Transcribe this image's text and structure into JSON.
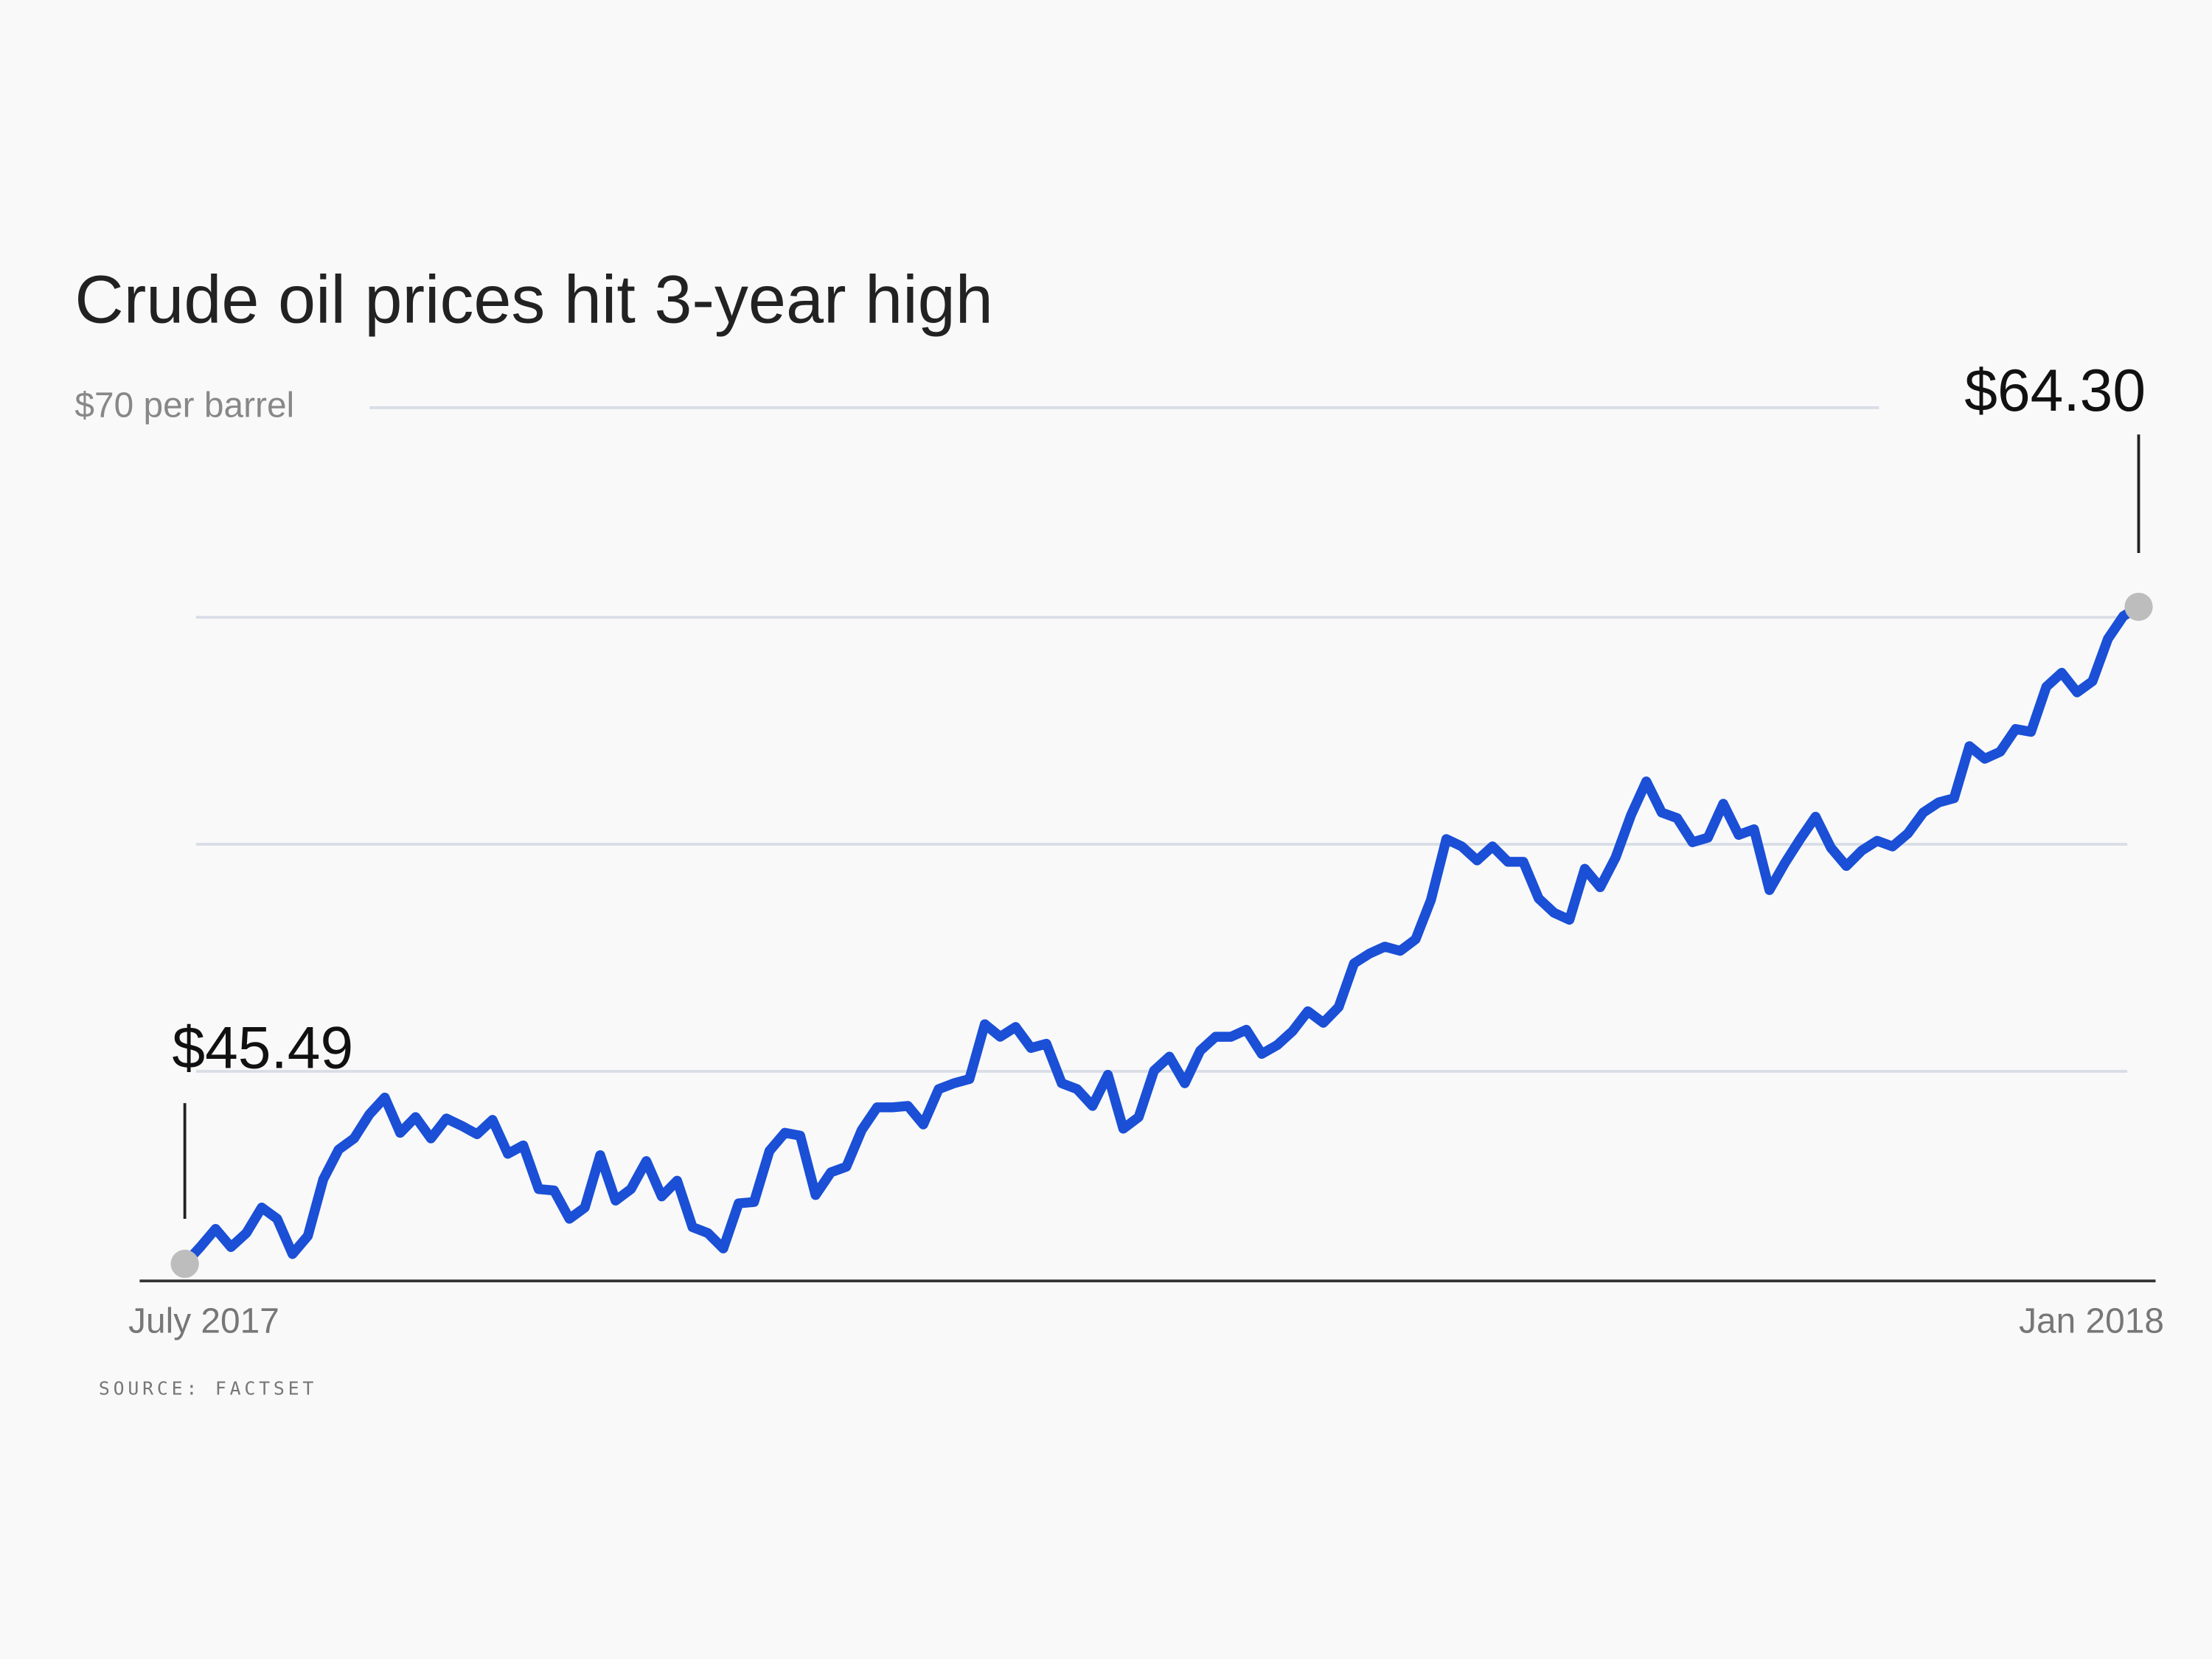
{
  "chart_data": {
    "type": "line",
    "title": "Crude oil prices hit 3-year high",
    "source": "SOURCE: FACTSET",
    "color": "#1a4fd6",
    "ylim": [
      45,
      70
    ],
    "yticks": [
      {
        "value": 70,
        "label": "$70 per barrel"
      }
    ],
    "grid_lines": [
      64,
      57.5,
      51
    ],
    "categories": [
      "July 2017",
      null,
      null,
      null,
      null,
      null,
      null,
      null,
      null,
      null,
      null,
      null,
      null,
      null,
      null,
      null,
      null,
      null,
      null,
      null,
      null,
      null,
      null,
      null,
      null,
      null,
      null,
      null,
      null,
      null,
      null,
      null,
      null,
      null,
      null,
      null,
      null,
      null,
      null,
      null,
      null,
      null,
      null,
      null,
      null,
      null,
      null,
      null,
      null,
      null,
      null,
      null,
      null,
      null,
      null,
      null,
      null,
      null,
      null,
      null,
      null,
      null,
      null,
      null,
      null,
      null,
      null,
      null,
      null,
      null,
      null,
      null,
      null,
      null,
      null,
      null,
      null,
      null,
      null,
      null,
      null,
      null,
      null,
      null,
      null,
      null,
      null,
      null,
      null,
      null,
      null,
      null,
      null,
      null,
      null,
      null,
      null,
      null,
      null,
      null,
      null,
      null,
      null,
      null,
      null,
      null,
      null,
      null,
      null,
      null,
      null,
      null,
      null,
      null,
      null,
      null,
      null,
      null,
      null,
      null,
      null,
      null,
      null,
      null,
      null,
      null,
      null,
      "Jan 2018"
    ],
    "values": [
      45.49,
      45.97,
      46.49,
      45.97,
      46.37,
      47.1,
      46.78,
      45.77,
      46.29,
      47.91,
      48.76,
      49.08,
      49.77,
      50.25,
      49.24,
      49.69,
      49.08,
      49.65,
      49.44,
      49.2,
      49.61,
      48.64,
      48.88,
      47.63,
      47.59,
      46.78,
      47.1,
      48.6,
      47.3,
      47.63,
      48.43,
      47.42,
      47.87,
      46.54,
      46.37,
      45.93,
      47.22,
      47.26,
      48.72,
      49.24,
      49.16,
      47.46,
      48.11,
      48.27,
      49.32,
      49.97,
      49.97,
      50.01,
      49.48,
      50.49,
      50.66,
      50.78,
      52.35,
      51.99,
      52.27,
      51.67,
      51.79,
      50.66,
      50.49,
      50.01,
      50.9,
      49.36,
      49.69,
      51.02,
      51.42,
      50.66,
      51.59,
      51.99,
      51.99,
      52.19,
      51.5,
      51.75,
      52.15,
      52.72,
      52.39,
      52.84,
      54.09,
      54.37,
      54.57,
      54.45,
      54.78,
      55.91,
      57.65,
      57.44,
      57.04,
      57.44,
      57.0,
      57.0,
      55.95,
      55.54,
      55.34,
      56.8,
      56.27,
      57.12,
      58.33,
      59.3,
      58.41,
      58.25,
      57.56,
      57.69,
      58.66,
      57.77,
      57.93,
      56.19,
      56.96,
      57.65,
      58.29,
      57.4,
      56.88,
      57.32,
      57.6,
      57.44,
      57.81,
      58.41,
      58.7,
      58.82,
      60.31,
      59.95,
      60.15,
      60.8,
      60.72,
      62.01,
      62.41,
      61.85,
      62.17,
      63.38,
      64.03,
      64.3
    ],
    "value_labels": [
      "$45.49",
      null,
      null,
      null,
      null,
      null,
      null,
      null,
      null,
      null,
      null,
      null,
      null,
      null,
      null,
      null,
      null,
      null,
      null,
      null,
      null,
      null,
      null,
      null,
      null,
      null,
      null,
      null,
      null,
      null,
      null,
      null,
      null,
      null,
      null,
      null,
      null,
      null,
      null,
      null,
      null,
      null,
      null,
      null,
      null,
      null,
      null,
      null,
      null,
      null,
      null,
      null,
      null,
      null,
      null,
      null,
      null,
      null,
      null,
      null,
      null,
      null,
      null,
      null,
      null,
      null,
      null,
      null,
      null,
      null,
      null,
      null,
      null,
      null,
      null,
      null,
      null,
      null,
      null,
      null,
      null,
      null,
      null,
      null,
      null,
      null,
      null,
      null,
      null,
      null,
      null,
      null,
      null,
      null,
      null,
      null,
      null,
      null,
      null,
      null,
      null,
      null,
      null,
      null,
      null,
      null,
      null,
      null,
      null,
      null,
      null,
      null,
      null,
      null,
      null,
      null,
      null,
      null,
      null,
      null,
      null,
      null,
      null,
      null,
      null,
      null,
      null,
      "$64.30"
    ]
  }
}
